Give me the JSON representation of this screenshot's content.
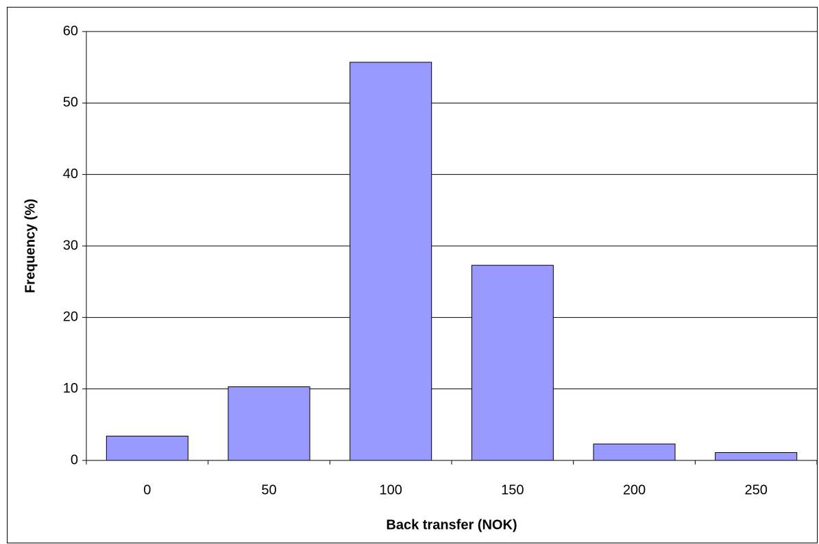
{
  "chart_data": {
    "type": "bar",
    "x_label": "Back transfer (NOK)",
    "y_label": "Frequency (%)",
    "categories": [
      "0",
      "50",
      "100",
      "150",
      "200",
      "250"
    ],
    "values": [
      3.4,
      10.3,
      55.7,
      27.3,
      2.3,
      1.1
    ],
    "color": "#9999ff",
    "ylim": [
      0,
      60
    ],
    "yticks": [
      0,
      10,
      20,
      30,
      40,
      50,
      60
    ],
    "grid": true
  }
}
